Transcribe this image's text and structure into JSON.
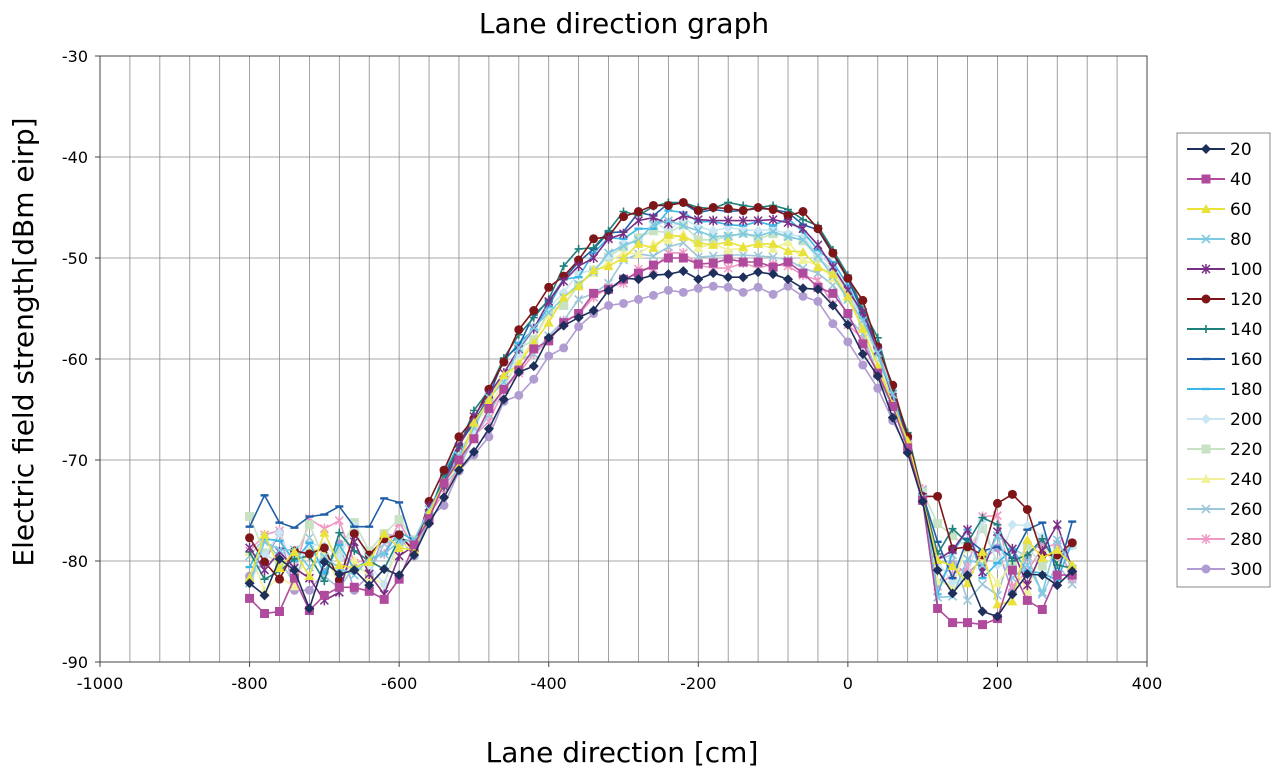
{
  "chart_data": {
    "type": "line",
    "title": "Lane direction graph",
    "xlabel": "Lane direction [cm]",
    "ylabel": "Electric field strength[dBm eirp]",
    "xlim": [
      -1000,
      400
    ],
    "ylim": [
      -90,
      -30
    ],
    "x_ticks": [
      -1000,
      -800,
      -600,
      -400,
      -200,
      0,
      200,
      400
    ],
    "y_ticks": [
      -90,
      -80,
      -70,
      -60,
      -50,
      -40,
      -30
    ],
    "x_tick_labels": [
      "-1000",
      "-800",
      "-600",
      "-400",
      "-200",
      "0",
      "200",
      "400"
    ],
    "y_tick_labels": [
      "-90",
      "-80",
      "-70",
      "-60",
      "-50",
      "-40",
      "-30"
    ],
    "x_minor_step": 40,
    "grid": true,
    "legend_position": "right",
    "series": [
      {
        "name": "20",
        "color": "#1f2f5c",
        "marker": "diamond",
        "peak": -51.8,
        "left_noise": -82.5,
        "right_noise": -83.5,
        "seed": 1
      },
      {
        "name": "40",
        "color": "#b04a9c",
        "marker": "square",
        "peak": -50.5,
        "left_noise": -83.0,
        "right_noise": -83.0,
        "seed": 2
      },
      {
        "name": "60",
        "color": "#e8e23a",
        "marker": "triangle",
        "peak": -48.5,
        "left_noise": -80.0,
        "right_noise": -81.0,
        "seed": 3
      },
      {
        "name": "80",
        "color": "#7ec9e2",
        "marker": "x",
        "peak": -47.5,
        "left_noise": -79.5,
        "right_noise": -80.5,
        "seed": 4
      },
      {
        "name": "100",
        "color": "#7a2f86",
        "marker": "star",
        "peak": -46.5,
        "left_noise": -81.0,
        "right_noise": -79.5,
        "seed": 5
      },
      {
        "name": "120",
        "color": "#7e1518",
        "marker": "circle",
        "peak": -45.0,
        "left_noise": -79.0,
        "right_noise": -76.0,
        "seed": 6
      },
      {
        "name": "140",
        "color": "#1f7f7a",
        "marker": "plus",
        "peak": -44.8,
        "left_noise": -79.5,
        "right_noise": -77.5,
        "seed": 7
      },
      {
        "name": "160",
        "color": "#1f5fa8",
        "marker": "dash",
        "peak": -45.5,
        "left_noise": -76.0,
        "right_noise": -79.0,
        "seed": 8
      },
      {
        "name": "180",
        "color": "#3bb6e6",
        "marker": "dash",
        "peak": -46.5,
        "left_noise": -79.0,
        "right_noise": -80.0,
        "seed": 9
      },
      {
        "name": "200",
        "color": "#c9e6f2",
        "marker": "diamond",
        "peak": -47.2,
        "left_noise": -79.5,
        "right_noise": -79.5,
        "seed": 10
      },
      {
        "name": "220",
        "color": "#c8e2c4",
        "marker": "square",
        "peak": -47.8,
        "left_noise": -78.0,
        "right_noise": -78.5,
        "seed": 11
      },
      {
        "name": "240",
        "color": "#f1f19a",
        "marker": "triangle",
        "peak": -48.8,
        "left_noise": -80.5,
        "right_noise": -80.0,
        "seed": 12
      },
      {
        "name": "260",
        "color": "#9cc7d9",
        "marker": "x",
        "peak": -49.8,
        "left_noise": -80.0,
        "right_noise": -80.5,
        "seed": 13
      },
      {
        "name": "280",
        "color": "#ee98c4",
        "marker": "star",
        "peak": -50.8,
        "left_noise": -78.5,
        "right_noise": -79.0,
        "seed": 14
      },
      {
        "name": "300",
        "color": "#b19cd2",
        "marker": "circle",
        "peak": -53.2,
        "left_noise": -80.0,
        "right_noise": -81.5,
        "seed": 15
      }
    ]
  }
}
